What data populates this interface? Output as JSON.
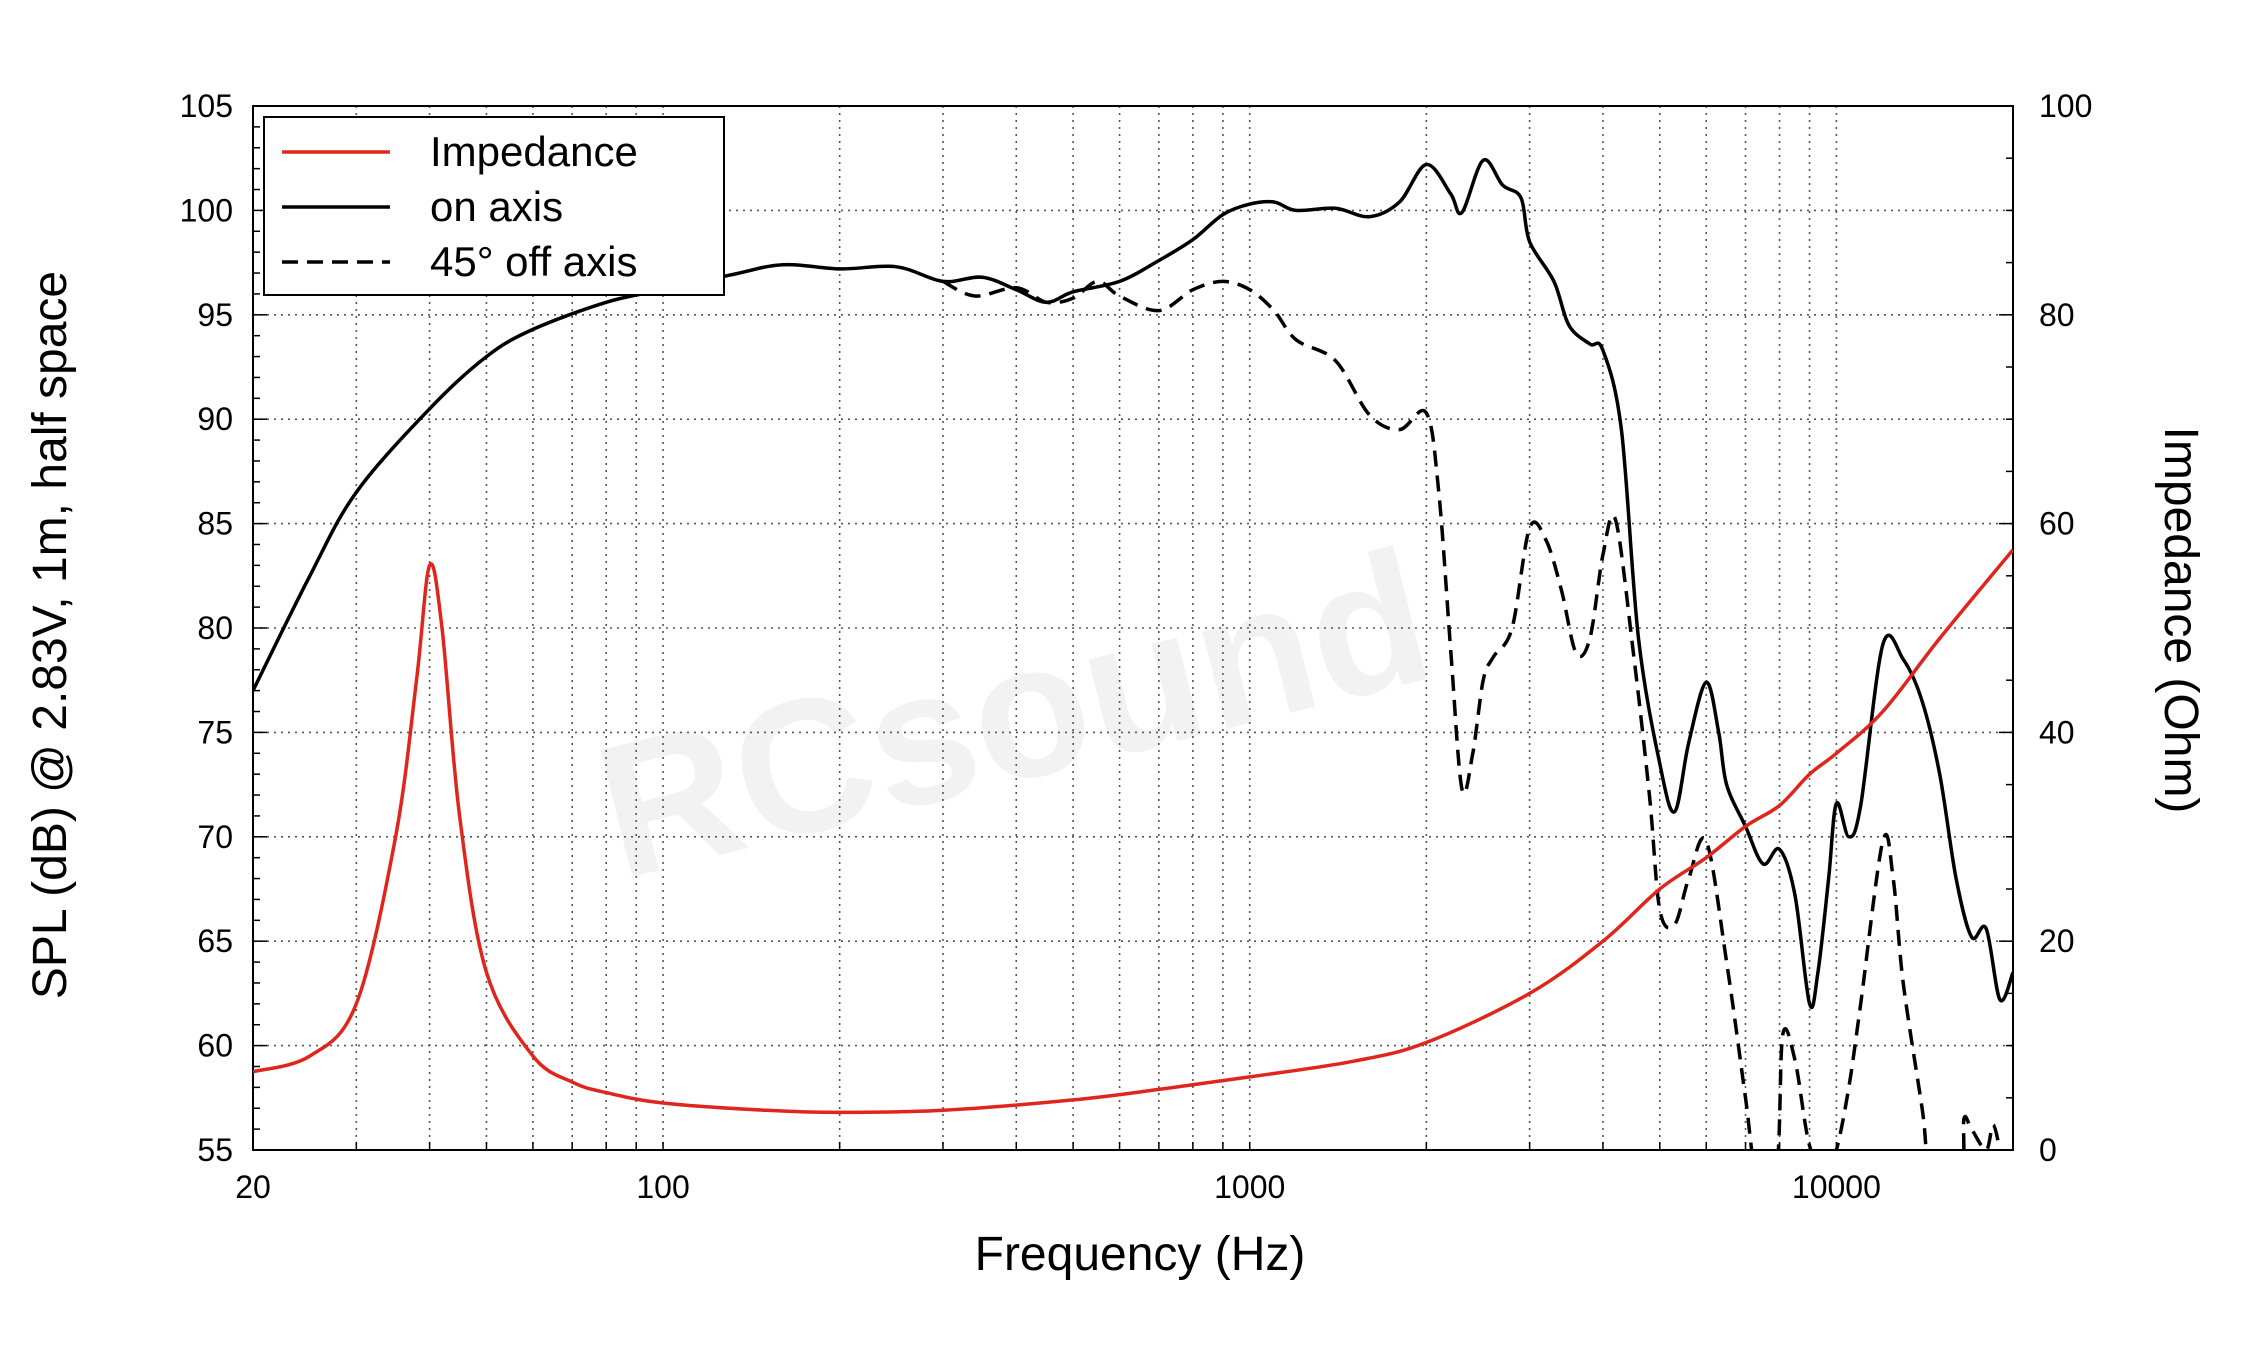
{
  "watermark": "RCsound",
  "chart_data": {
    "type": "line",
    "xlabel": "Frequency (Hz)",
    "ylabel": "SPL (dB) @ 2.83V, 1m, half space",
    "y2label": "Impedance (Ohm)",
    "xscale": "log",
    "xlim": [
      20,
      20000
    ],
    "ylim": [
      55,
      105
    ],
    "y2lim": [
      0,
      100
    ],
    "grid": true,
    "legend_position": "top-left",
    "x_ticks": [
      20,
      100,
      1000,
      10000
    ],
    "x_tick_labels": [
      "20",
      "100",
      "1000",
      "10000"
    ],
    "y_ticks": [
      55,
      60,
      65,
      70,
      75,
      80,
      85,
      90,
      95,
      100,
      105
    ],
    "y_tick_labels": [
      "55",
      "60",
      "65",
      "70",
      "75",
      "80",
      "85",
      "90",
      "95",
      "100",
      "105"
    ],
    "y2_ticks": [
      0,
      20,
      40,
      60,
      80,
      100
    ],
    "y2_tick_labels": [
      "0",
      "20",
      "40",
      "60",
      "80",
      "100"
    ],
    "series": [
      {
        "name": "Impedance",
        "axis": "right",
        "color": "#e0261c",
        "dash": "solid",
        "points": [
          [
            20,
            7.5
          ],
          [
            25,
            9
          ],
          [
            30,
            14
          ],
          [
            35,
            30
          ],
          [
            38,
            45
          ],
          [
            40,
            56
          ],
          [
            42,
            50
          ],
          [
            45,
            32
          ],
          [
            50,
            17
          ],
          [
            60,
            9
          ],
          [
            70,
            6.5
          ],
          [
            80,
            5.5
          ],
          [
            100,
            4.5
          ],
          [
            150,
            3.8
          ],
          [
            200,
            3.6
          ],
          [
            300,
            3.8
          ],
          [
            500,
            4.8
          ],
          [
            700,
            5.8
          ],
          [
            1000,
            7.0
          ],
          [
            1500,
            8.5
          ],
          [
            2000,
            10.3
          ],
          [
            3000,
            15
          ],
          [
            4000,
            20
          ],
          [
            5000,
            25
          ],
          [
            6000,
            28
          ],
          [
            7000,
            31
          ],
          [
            8000,
            33
          ],
          [
            9000,
            36
          ],
          [
            10000,
            38
          ],
          [
            12000,
            42
          ],
          [
            15000,
            49
          ],
          [
            20000,
            57.5
          ]
        ]
      },
      {
        "name": "on axis",
        "axis": "left",
        "color": "#000000",
        "dash": "solid",
        "points": [
          [
            20,
            77
          ],
          [
            25,
            82.5
          ],
          [
            30,
            86.5
          ],
          [
            40,
            90.5
          ],
          [
            50,
            93
          ],
          [
            60,
            94.3
          ],
          [
            80,
            95.6
          ],
          [
            100,
            96.2
          ],
          [
            130,
            96.9
          ],
          [
            160,
            97.4
          ],
          [
            200,
            97.2
          ],
          [
            250,
            97.3
          ],
          [
            300,
            96.6
          ],
          [
            350,
            96.8
          ],
          [
            400,
            96.2
          ],
          [
            450,
            95.6
          ],
          [
            500,
            96.1
          ],
          [
            600,
            96.6
          ],
          [
            700,
            97.6
          ],
          [
            800,
            98.6
          ],
          [
            900,
            99.8
          ],
          [
            1000,
            100.3
          ],
          [
            1100,
            100.4
          ],
          [
            1200,
            100.0
          ],
          [
            1400,
            100.1
          ],
          [
            1600,
            99.7
          ],
          [
            1800,
            100.4
          ],
          [
            2000,
            102.2
          ],
          [
            2200,
            100.8
          ],
          [
            2300,
            99.9
          ],
          [
            2500,
            102.4
          ],
          [
            2700,
            101.2
          ],
          [
            2900,
            100.6
          ],
          [
            3000,
            98.5
          ],
          [
            3300,
            96.6
          ],
          [
            3500,
            94.5
          ],
          [
            3800,
            93.6
          ],
          [
            4000,
            93.3
          ],
          [
            4300,
            89.5
          ],
          [
            4600,
            79.5
          ],
          [
            5000,
            73.5
          ],
          [
            5300,
            71.2
          ],
          [
            5600,
            74.5
          ],
          [
            6000,
            77.4
          ],
          [
            6300,
            75
          ],
          [
            6500,
            72.5
          ],
          [
            7000,
            70.5
          ],
          [
            7500,
            68.7
          ],
          [
            8000,
            69.4
          ],
          [
            8500,
            67.2
          ],
          [
            9000,
            62
          ],
          [
            9300,
            63.5
          ],
          [
            9700,
            68
          ],
          [
            10000,
            71.6
          ],
          [
            10500,
            70
          ],
          [
            11000,
            71.5
          ],
          [
            12000,
            79.2
          ],
          [
            13000,
            78.5
          ],
          [
            14000,
            76.5
          ],
          [
            15000,
            73
          ],
          [
            16000,
            68
          ],
          [
            17000,
            65.2
          ],
          [
            18000,
            65.6
          ],
          [
            19000,
            62.2
          ],
          [
            20000,
            63.5
          ]
        ]
      },
      {
        "name": "45° off axis",
        "axis": "left",
        "color": "#000000",
        "dash": "dashed",
        "points": [
          [
            300,
            96.6
          ],
          [
            340,
            95.9
          ],
          [
            400,
            96.3
          ],
          [
            450,
            95.6
          ],
          [
            500,
            95.8
          ],
          [
            550,
            96.6
          ],
          [
            600,
            95.9
          ],
          [
            700,
            95.2
          ],
          [
            800,
            96.2
          ],
          [
            900,
            96.6
          ],
          [
            1000,
            96.2
          ],
          [
            1100,
            95.2
          ],
          [
            1200,
            93.8
          ],
          [
            1400,
            92.8
          ],
          [
            1600,
            90.2
          ],
          [
            1800,
            89.5
          ],
          [
            2000,
            90.3
          ],
          [
            2100,
            86.5
          ],
          [
            2200,
            79
          ],
          [
            2300,
            72.3
          ],
          [
            2400,
            74
          ],
          [
            2500,
            77.5
          ],
          [
            2600,
            78.6
          ],
          [
            2800,
            80
          ],
          [
            3000,
            84.8
          ],
          [
            3200,
            84.2
          ],
          [
            3400,
            81.8
          ],
          [
            3600,
            78.8
          ],
          [
            3800,
            79.5
          ],
          [
            4000,
            83.5
          ],
          [
            4200,
            85.2
          ],
          [
            4500,
            79
          ],
          [
            4800,
            72
          ],
          [
            5000,
            66.5
          ],
          [
            5300,
            65.8
          ],
          [
            5600,
            68
          ],
          [
            6000,
            69.8
          ],
          [
            6500,
            64
          ],
          [
            7000,
            57.5
          ],
          [
            7300,
            54
          ],
          [
            7900,
            54
          ],
          [
            8100,
            60.5
          ],
          [
            8500,
            59.3
          ],
          [
            9000,
            55.2
          ],
          [
            9600,
            54
          ],
          [
            10000,
            55
          ],
          [
            10500,
            58
          ],
          [
            11000,
            62
          ],
          [
            12000,
            69.8
          ],
          [
            12500,
            68
          ],
          [
            13000,
            63
          ],
          [
            14000,
            57
          ],
          [
            14500,
            54
          ],
          [
            16300,
            54
          ],
          [
            16500,
            56.5
          ],
          [
            17000,
            56
          ],
          [
            18000,
            55
          ],
          [
            18500,
            56.2
          ],
          [
            19000,
            55
          ]
        ]
      }
    ]
  }
}
